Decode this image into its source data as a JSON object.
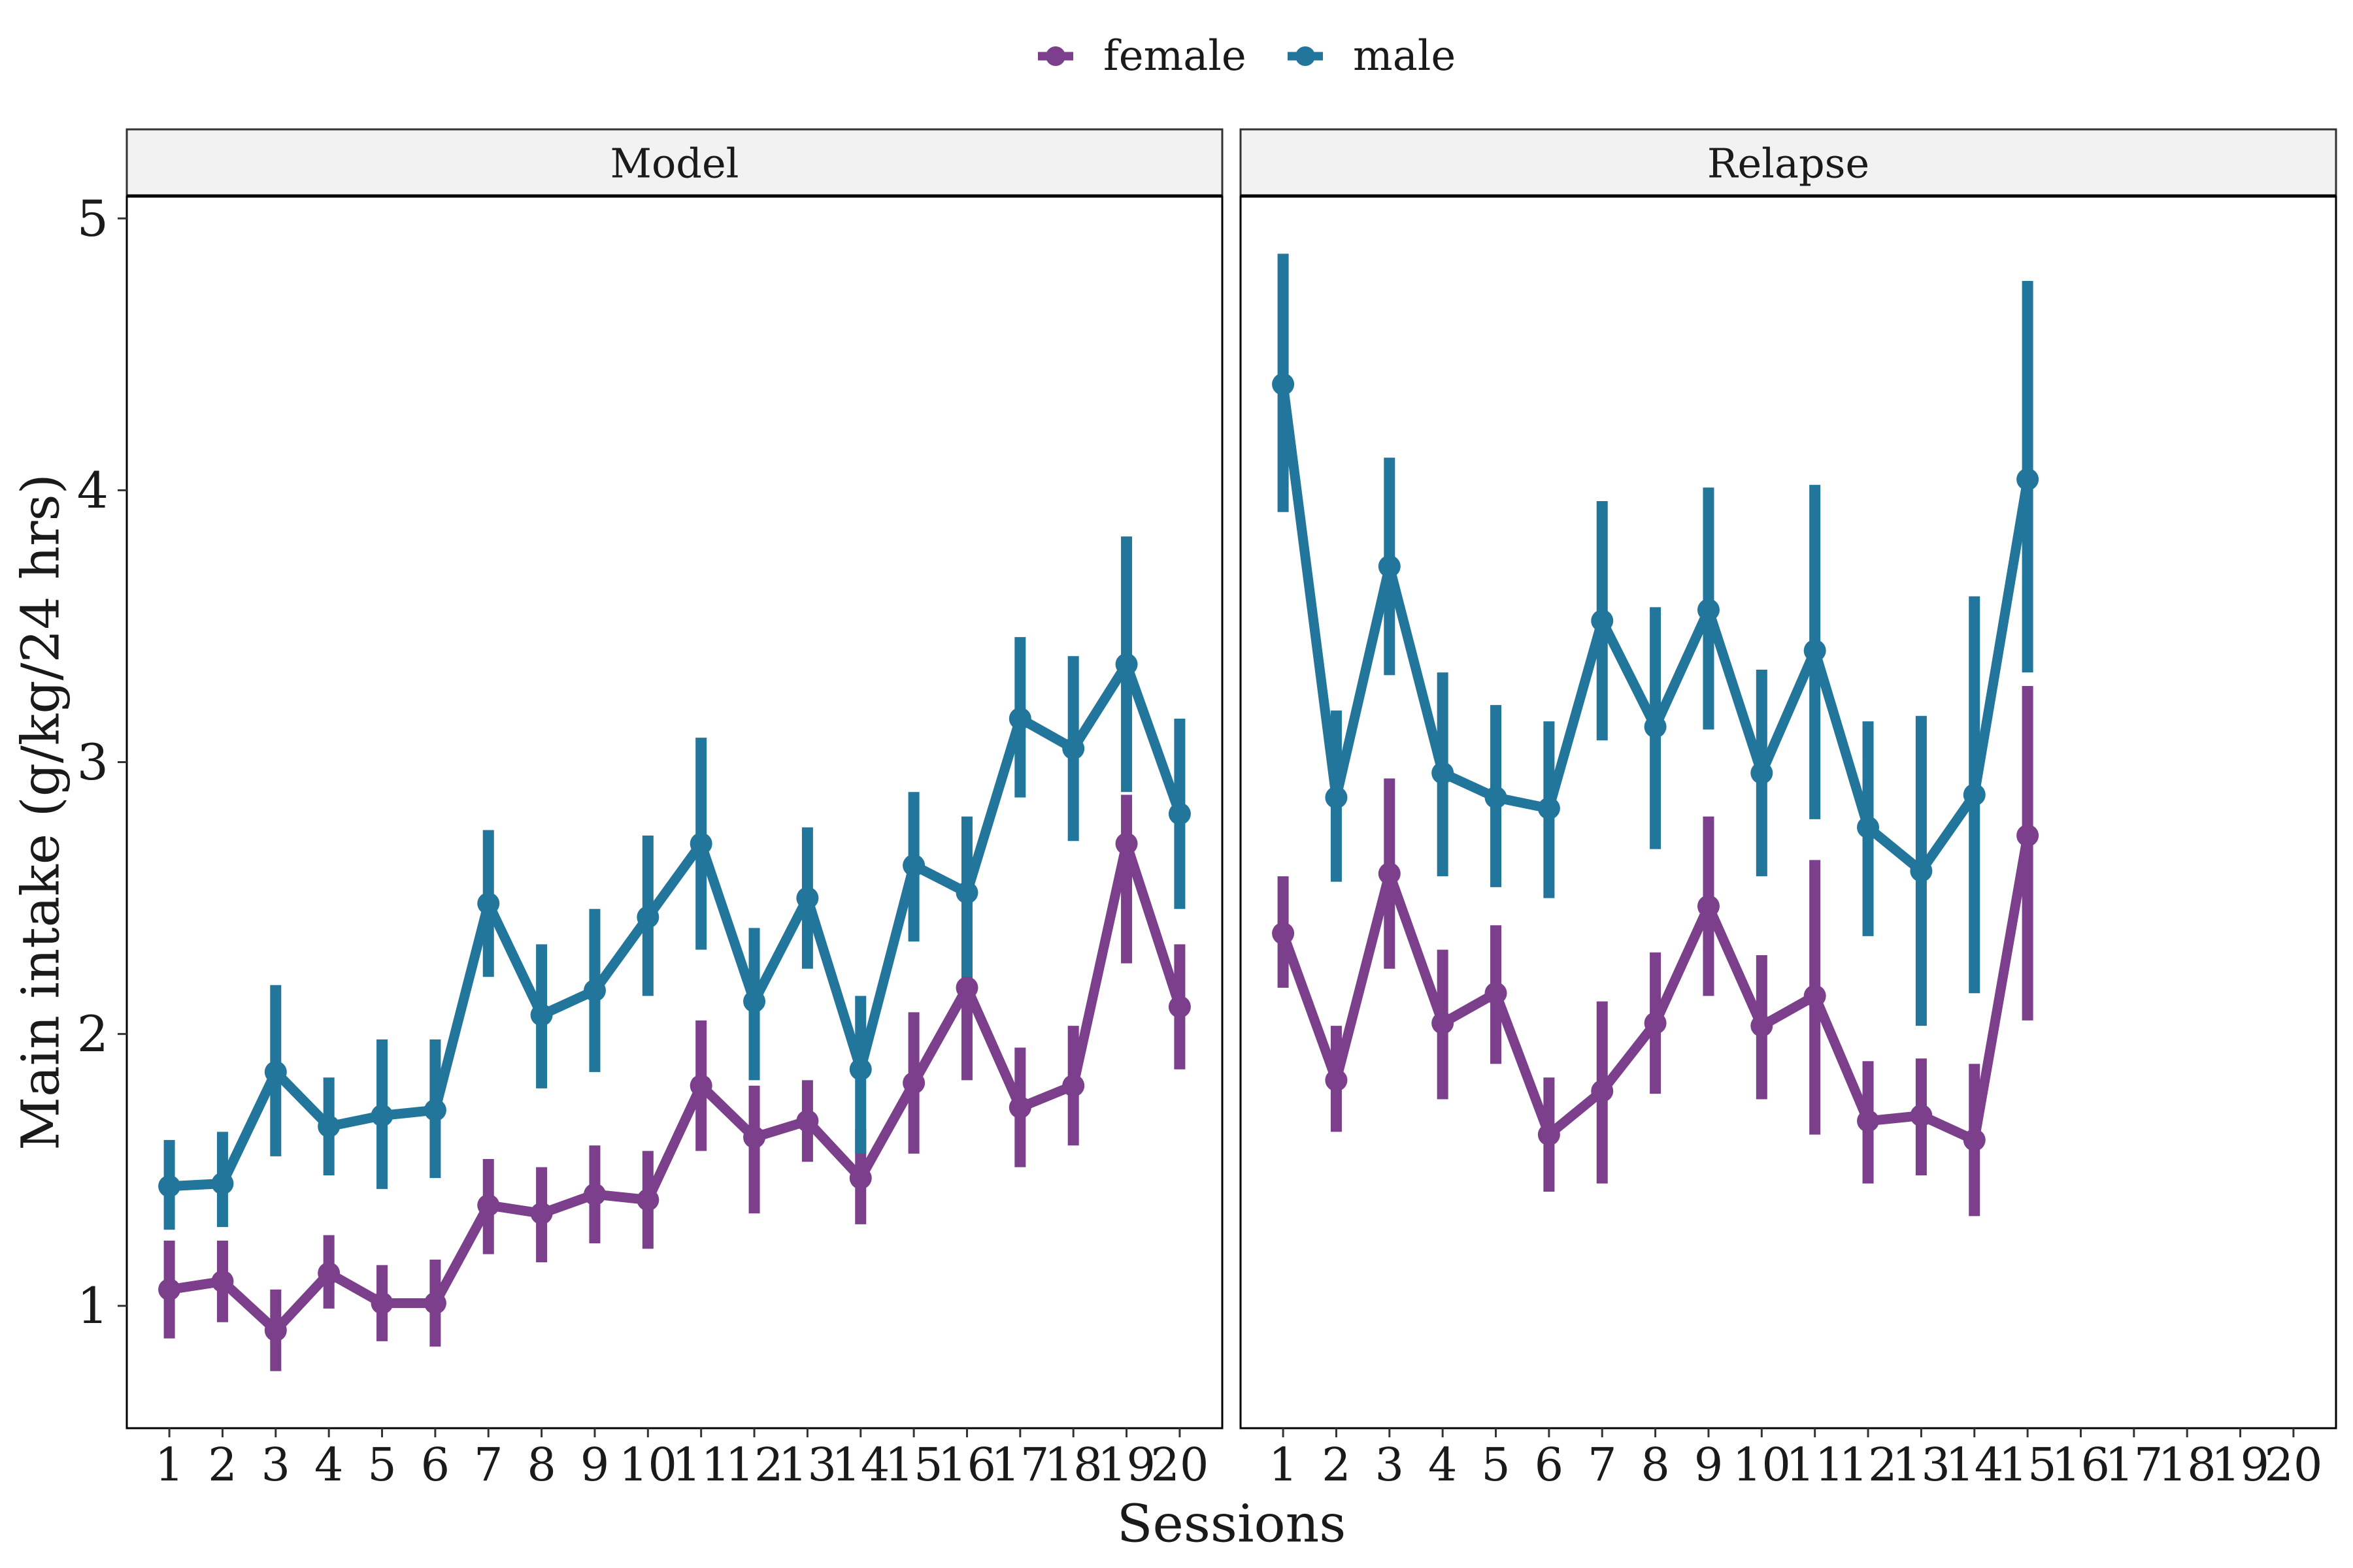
{
  "chart_data": {
    "type": "line",
    "xlabel": "Sessions",
    "ylabel": "Main intake (g/kg/24 hrs)",
    "ylim": [
      0.55,
      5.08
    ],
    "yticks": [
      1,
      2,
      3,
      4,
      5
    ],
    "x": [
      1,
      2,
      3,
      4,
      5,
      6,
      7,
      8,
      9,
      10,
      11,
      12,
      13,
      14,
      15,
      16,
      17,
      18,
      19,
      20
    ],
    "legend_position": "top-center",
    "grid": false,
    "error_bars": true,
    "colors": {
      "female": "#7b3f8c",
      "male": "#23769b"
    },
    "legend": [
      "female",
      "male"
    ],
    "panels": [
      {
        "title": "Model",
        "series": [
          {
            "name": "female",
            "x": [
              1,
              2,
              3,
              4,
              5,
              6,
              7,
              8,
              9,
              10,
              11,
              12,
              13,
              14,
              15,
              16,
              17,
              18,
              19,
              20
            ],
            "y": [
              1.06,
              1.09,
              0.91,
              1.12,
              1.01,
              1.01,
              1.37,
              1.34,
              1.41,
              1.39,
              1.81,
              1.62,
              1.68,
              1.47,
              1.82,
              2.17,
              1.73,
              1.81,
              2.7,
              2.1
            ],
            "low": [
              0.88,
              0.94,
              0.76,
              0.99,
              0.87,
              0.85,
              1.19,
              1.16,
              1.23,
              1.21,
              1.57,
              1.34,
              1.53,
              1.3,
              1.56,
              1.83,
              1.51,
              1.59,
              2.26,
              1.87
            ],
            "high": [
              1.24,
              1.24,
              1.06,
              1.26,
              1.15,
              1.17,
              1.54,
              1.51,
              1.59,
              1.57,
              2.05,
              1.81,
              1.83,
              1.65,
              2.08,
              2.38,
              1.95,
              2.03,
              2.88,
              2.33
            ]
          },
          {
            "name": "male",
            "x": [
              1,
              2,
              3,
              4,
              5,
              6,
              7,
              8,
              9,
              10,
              11,
              12,
              13,
              14,
              15,
              16,
              17,
              18,
              19,
              20
            ],
            "y": [
              1.44,
              1.45,
              1.86,
              1.66,
              1.7,
              1.72,
              2.48,
              2.07,
              2.16,
              2.43,
              2.7,
              2.12,
              2.5,
              1.87,
              2.62,
              2.52,
              3.16,
              3.05,
              3.36,
              2.81
            ],
            "low": [
              1.28,
              1.29,
              1.55,
              1.48,
              1.43,
              1.47,
              2.21,
              1.8,
              1.86,
              2.14,
              2.31,
              1.83,
              2.24,
              1.56,
              2.34,
              2.21,
              2.87,
              2.71,
              2.89,
              2.46
            ],
            "high": [
              1.61,
              1.64,
              2.18,
              1.84,
              1.98,
              1.98,
              2.75,
              2.33,
              2.46,
              2.73,
              3.09,
              2.39,
              2.76,
              2.14,
              2.89,
              2.8,
              3.46,
              3.39,
              3.83,
              3.16
            ]
          }
        ]
      },
      {
        "title": "Relapse",
        "series": [
          {
            "name": "female",
            "x": [
              1,
              2,
              3,
              4,
              5,
              6,
              7,
              8,
              9,
              10,
              11,
              12,
              13,
              14,
              15
            ],
            "y": [
              2.37,
              1.83,
              2.59,
              2.04,
              2.15,
              1.63,
              1.79,
              2.04,
              2.47,
              2.03,
              2.14,
              1.68,
              1.7,
              1.61,
              2.73
            ],
            "low": [
              2.17,
              1.64,
              2.24,
              1.76,
              1.89,
              1.42,
              1.45,
              1.78,
              2.14,
              1.76,
              1.63,
              1.45,
              1.48,
              1.33,
              2.05
            ],
            "high": [
              2.58,
              2.03,
              2.94,
              2.31,
              2.4,
              1.84,
              2.12,
              2.3,
              2.8,
              2.29,
              2.64,
              1.9,
              1.91,
              1.89,
              3.28
            ]
          },
          {
            "name": "male",
            "x": [
              1,
              2,
              3,
              4,
              5,
              6,
              7,
              8,
              9,
              10,
              11,
              12,
              13,
              14,
              15
            ],
            "y": [
              4.39,
              2.87,
              3.72,
              2.96,
              2.87,
              2.83,
              3.52,
              3.13,
              3.56,
              2.96,
              3.41,
              2.76,
              2.6,
              2.88,
              4.04
            ],
            "low": [
              3.92,
              2.56,
              3.32,
              2.58,
              2.54,
              2.5,
              3.08,
              2.68,
              3.12,
              2.58,
              2.79,
              2.36,
              2.03,
              2.15,
              3.33
            ],
            "high": [
              4.87,
              3.19,
              4.12,
              3.33,
              3.21,
              3.15,
              3.96,
              3.57,
              4.01,
              3.34,
              4.02,
              3.15,
              3.17,
              3.61,
              4.77
            ]
          }
        ]
      }
    ]
  }
}
